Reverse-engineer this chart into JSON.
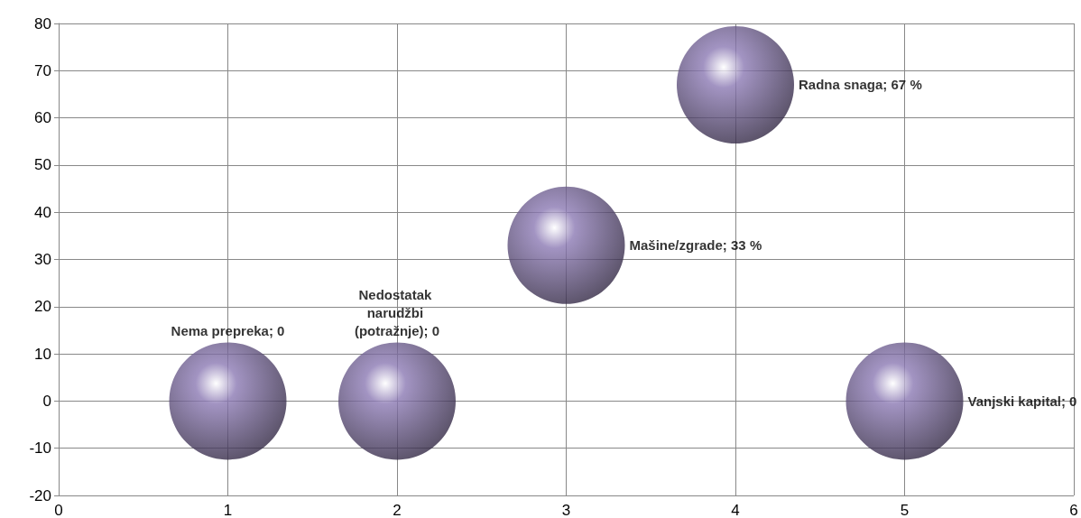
{
  "chart_data": {
    "type": "bubble",
    "x": [
      1,
      2,
      3,
      4,
      5
    ],
    "values": [
      0,
      0,
      33,
      67,
      0
    ],
    "sizes": [
      1,
      1,
      1,
      1,
      1
    ],
    "color": "#8b79b3",
    "value_labels": [
      "Nema prepreka; 0",
      "Nedostatak narudžbi (potražnje); 0",
      "Mašine/zgrade; 33 %",
      "Radna snaga; 67 %",
      "Vanjski kapital; 0"
    ],
    "xlim": [
      0,
      6
    ],
    "xticks": [
      0,
      1,
      2,
      3,
      4,
      5,
      6
    ],
    "ylim": [
      -20,
      80
    ],
    "yticks": [
      -20,
      -10,
      0,
      10,
      20,
      30,
      40,
      50,
      60,
      70,
      80
    ],
    "grid": true
  }
}
